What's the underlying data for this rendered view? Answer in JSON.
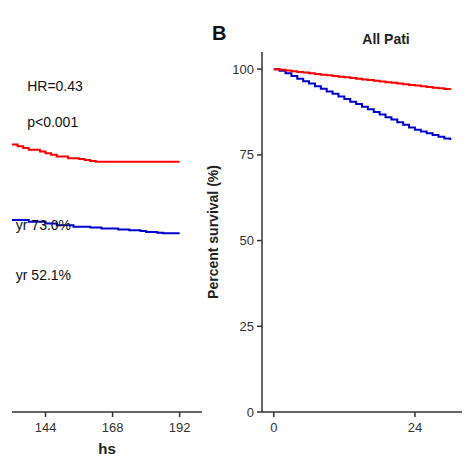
{
  "chart_data": [
    {
      "type": "step",
      "x": [
        132,
        134,
        136,
        138,
        140,
        142,
        144,
        146,
        148,
        150,
        152,
        154,
        156,
        158,
        160,
        162,
        164,
        166,
        168,
        170,
        172,
        174,
        176,
        178,
        180,
        182,
        184,
        186,
        188,
        190,
        192
      ],
      "series": [
        {
          "color": "#0000CD",
          "values": [
            56,
            56,
            56,
            55.5,
            55.5,
            55.5,
            55,
            55,
            54.5,
            54.5,
            54.5,
            54,
            54,
            54,
            53.8,
            53.8,
            53.5,
            53.5,
            53.5,
            53.2,
            53.2,
            53,
            53,
            52.8,
            52.5,
            52.5,
            52.3,
            52.1,
            52.1,
            52.1,
            52.1
          ]
        },
        {
          "color": "#FF0000",
          "values": [
            78,
            77.5,
            77,
            76.5,
            76.5,
            76,
            75.5,
            75,
            74.5,
            74.5,
            74,
            74,
            73.8,
            73.5,
            73.2,
            73,
            73,
            73,
            73,
            73,
            73,
            73,
            73,
            73,
            73,
            73,
            73,
            73,
            73,
            73,
            73
          ]
        }
      ],
      "xlim": [
        132,
        200
      ],
      "xticks": [
        144,
        168,
        192
      ],
      "ylim": [
        0,
        105
      ],
      "xlabel": "hs",
      "annotations": [
        "HR=0.43",
        "p<0.001",
        "yr 52.1%",
        "yr 73.0%"
      ],
      "tick_labels": "x"
    },
    {
      "type": "step",
      "title": "All Pati",
      "x": [
        0,
        1,
        2,
        3,
        4,
        5,
        6,
        7,
        8,
        9,
        10,
        11,
        12,
        13,
        14,
        15,
        16,
        17,
        18,
        19,
        20,
        21,
        22,
        23,
        24,
        25,
        26,
        27,
        28,
        29,
        30
      ],
      "series": [
        {
          "color": "#0000CD",
          "values": [
            100,
            99.5,
            98.8,
            98.0,
            97.2,
            96.5,
            95.8,
            95.0,
            94.3,
            93.5,
            92.8,
            92.0,
            91.3,
            90.5,
            89.8,
            89.0,
            88.3,
            87.5,
            86.8,
            86.0,
            85.3,
            84.5,
            83.8,
            83.0,
            82.3,
            81.8,
            81.3,
            80.8,
            80.3,
            79.8,
            79.3
          ]
        },
        {
          "color": "#FF0000",
          "values": [
            100,
            99.8,
            99.6,
            99.4,
            99.2,
            99.0,
            98.8,
            98.6,
            98.4,
            98.2,
            98.0,
            97.8,
            97.6,
            97.4,
            97.2,
            97.0,
            96.8,
            96.6,
            96.4,
            96.2,
            96.0,
            95.8,
            95.6,
            95.4,
            95.2,
            95.0,
            94.8,
            94.6,
            94.4,
            94.2,
            94.0
          ]
        }
      ],
      "xlim": [
        -2,
        32
      ],
      "xticks": [
        0,
        24
      ],
      "ylim": [
        0,
        105
      ],
      "yticks": [
        0,
        25,
        50,
        75,
        100
      ],
      "ylabel": "Percent survival (%)",
      "annotations": [
        "B"
      ]
    }
  ]
}
